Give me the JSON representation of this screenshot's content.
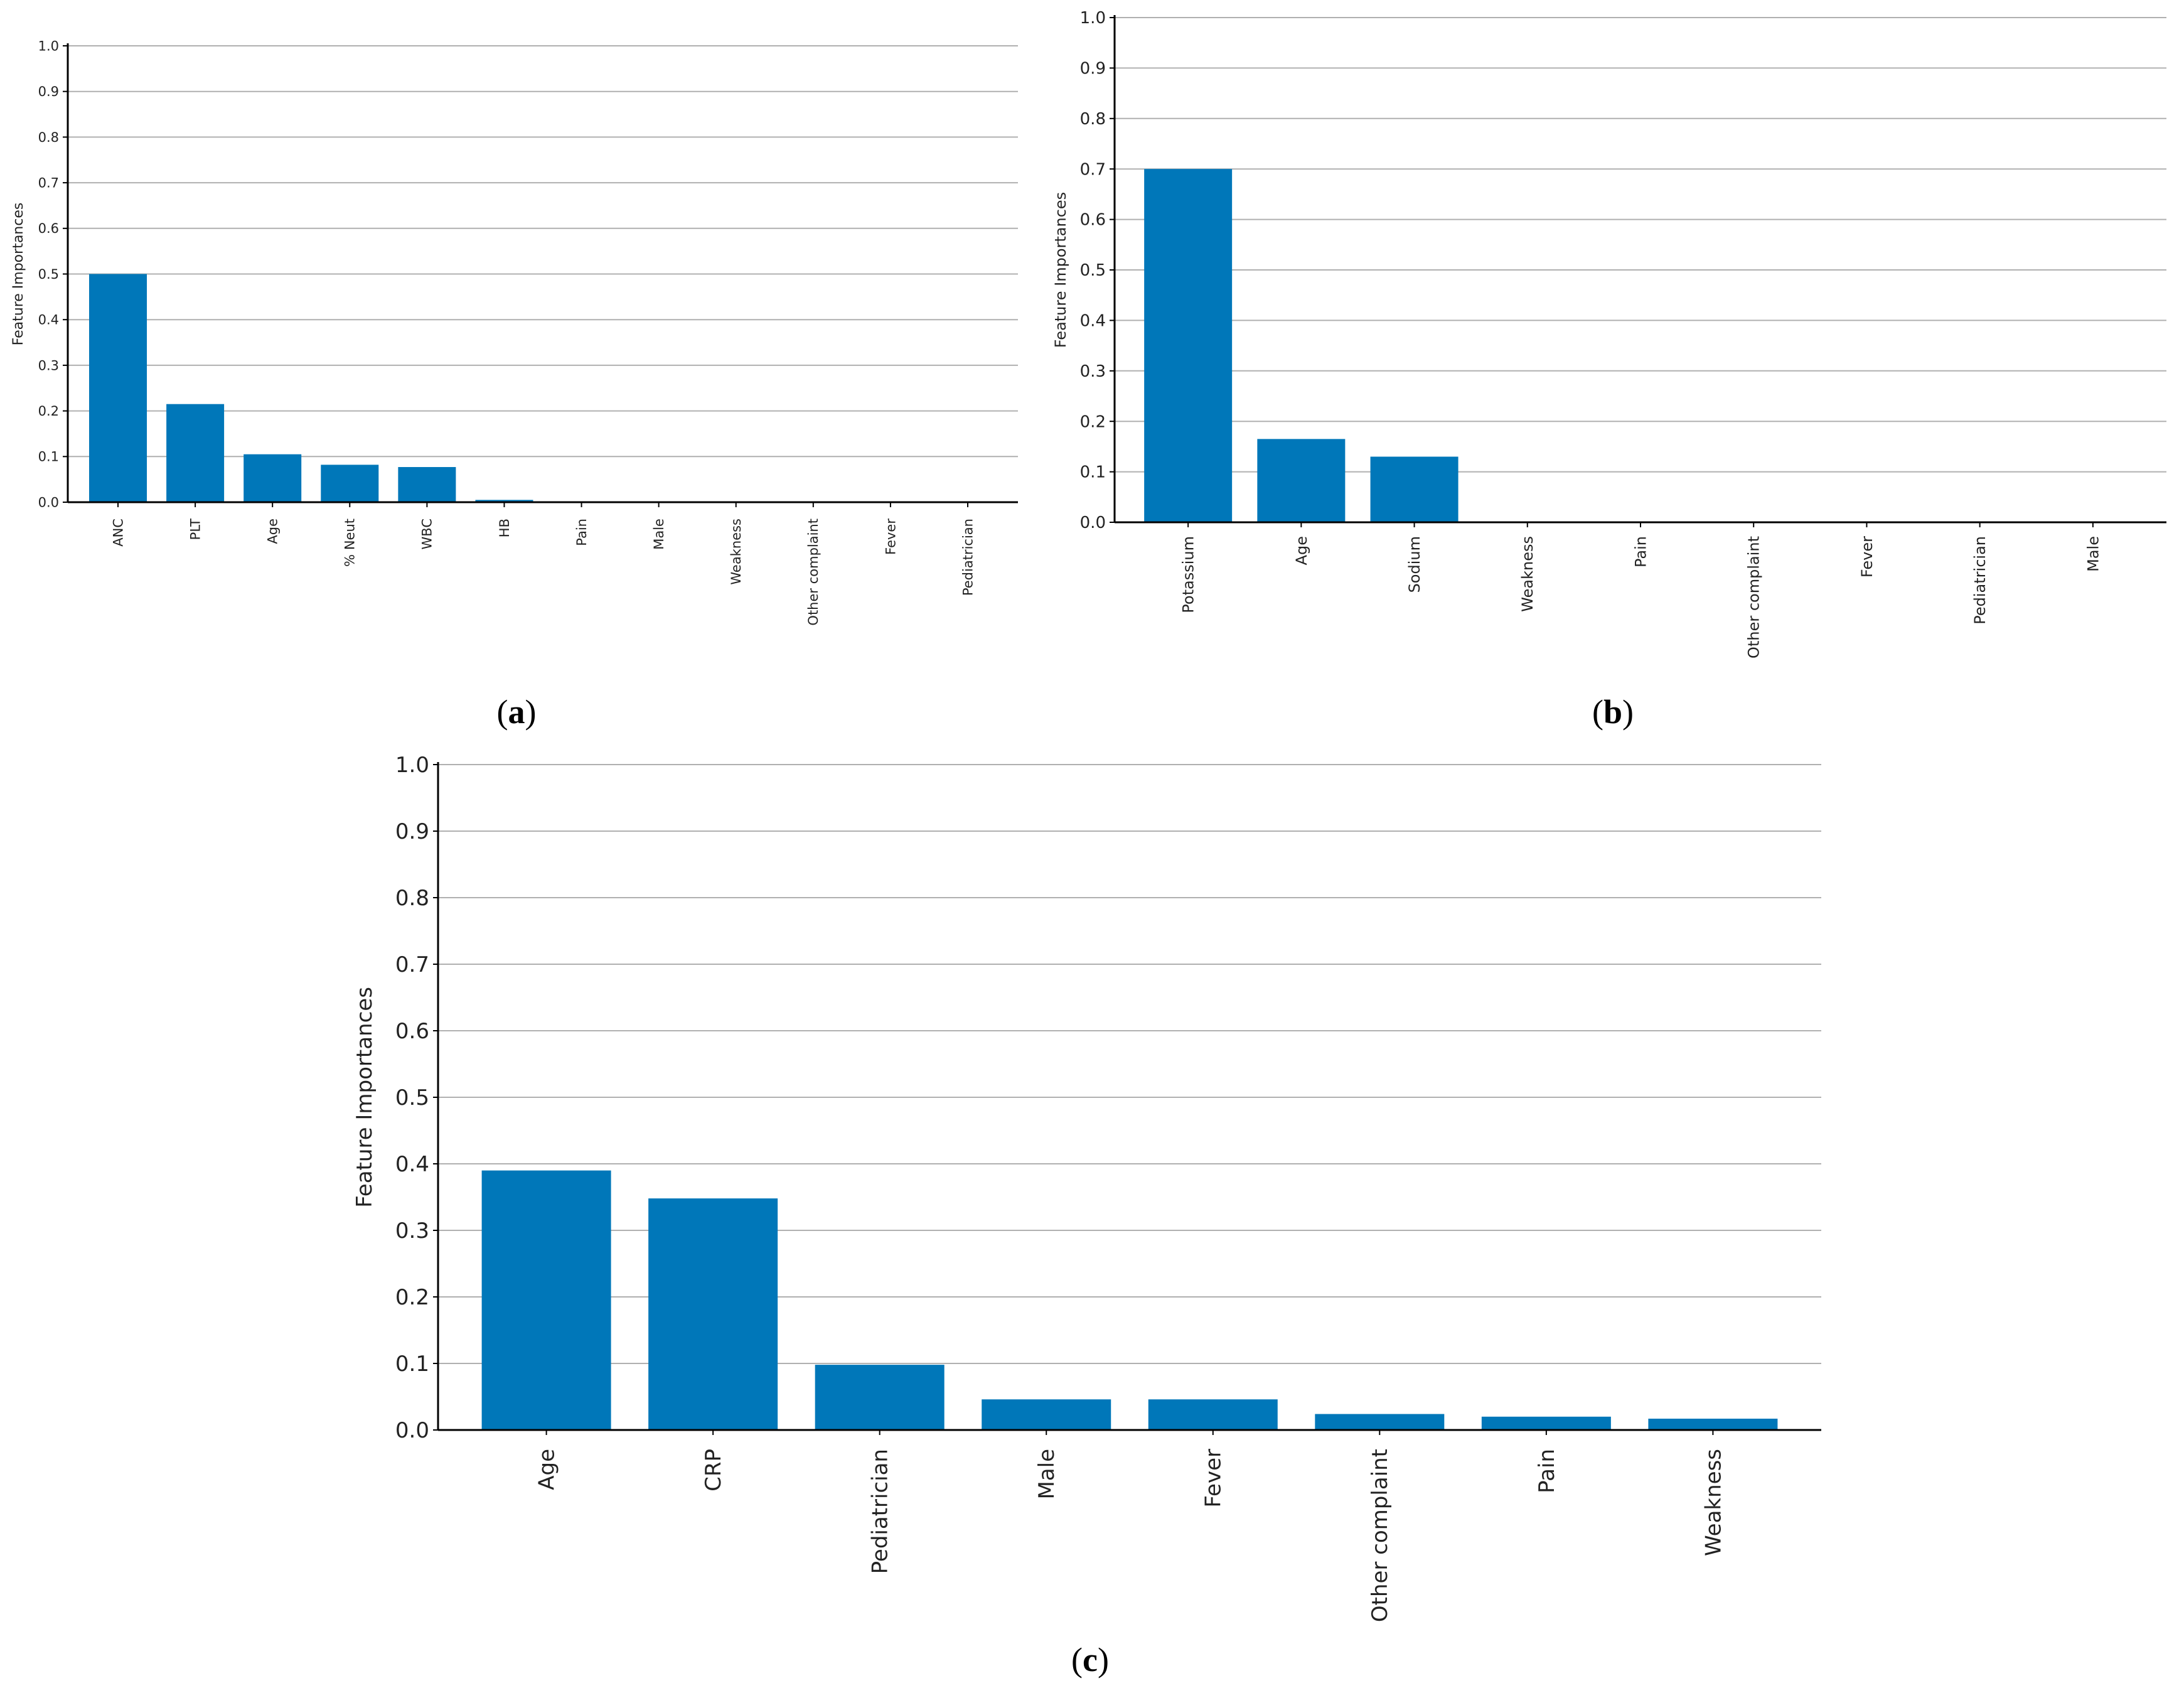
{
  "chart_data": [
    {
      "type": "bar",
      "panel_label": "a",
      "ylabel": "Feature Importances",
      "ylim": [
        0,
        1.0
      ],
      "yticks": [
        "0.0",
        "0.1",
        "0.2",
        "0.3",
        "0.4",
        "0.5",
        "0.6",
        "0.7",
        "0.8",
        "0.9",
        "1.0"
      ],
      "grid": true,
      "categories": [
        "ANC",
        "PLT",
        "Age",
        "% Neut",
        "WBC",
        "HB",
        "Pain",
        "Male",
        "Weakness",
        "Other complaint",
        "Fever",
        "Pediatrician"
      ],
      "values": [
        0.5,
        0.215,
        0.105,
        0.082,
        0.077,
        0.005,
        0.002,
        0.001,
        0.0,
        0.0,
        0.0,
        0.0
      ],
      "bar_color": "#0077b9"
    },
    {
      "type": "bar",
      "panel_label": "b",
      "ylabel": "Feature Importances",
      "ylim": [
        0,
        1.0
      ],
      "yticks": [
        "0.0",
        "0.1",
        "0.2",
        "0.3",
        "0.4",
        "0.5",
        "0.6",
        "0.7",
        "0.8",
        "0.9",
        "1.0"
      ],
      "grid": true,
      "categories": [
        "Potassium",
        "Age",
        "Sodium",
        "Weakness",
        "Pain",
        "Other complaint",
        "Fever",
        "Pediatrician",
        "Male"
      ],
      "values": [
        0.7,
        0.165,
        0.13,
        0.0,
        0.0,
        0.0,
        0.0,
        0.0,
        0.0
      ],
      "bar_color": "#0077b9"
    },
    {
      "type": "bar",
      "panel_label": "c",
      "ylabel": "Feature Importances",
      "ylim": [
        0,
        1.0
      ],
      "yticks": [
        "0.0",
        "0.1",
        "0.2",
        "0.3",
        "0.4",
        "0.5",
        "0.6",
        "0.7",
        "0.8",
        "0.9",
        "1.0"
      ],
      "grid": true,
      "categories": [
        "Age",
        "CRP",
        "Pediatrician",
        "Male",
        "Fever",
        "Other complaint",
        "Pain",
        "Weakness"
      ],
      "values": [
        0.39,
        0.348,
        0.098,
        0.046,
        0.046,
        0.024,
        0.02,
        0.017
      ],
      "bar_color": "#0077b9"
    }
  ]
}
